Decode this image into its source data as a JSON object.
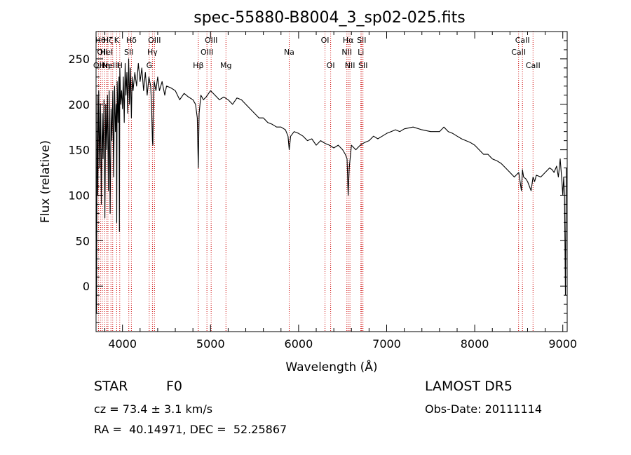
{
  "chart_data": {
    "type": "line",
    "title": "spec-55880-B8004_3_sp02-025.fits",
    "xlabel": "Wavelength (Å)",
    "ylabel": "Flux (relative)",
    "xlim": [
      3700,
      9050
    ],
    "ylim": [
      -50,
      280
    ],
    "xticks": [
      4000,
      5000,
      6000,
      7000,
      8000,
      9000
    ],
    "yticks": [
      0,
      50,
      100,
      150,
      200,
      250
    ],
    "grid": false,
    "series": [
      {
        "x": [
          3700,
          3705,
          3712,
          3720,
          3730,
          3740,
          3750,
          3760,
          3770,
          3780,
          3790,
          3800,
          3810,
          3820,
          3830,
          3840,
          3850,
          3860,
          3870,
          3880,
          3890,
          3900,
          3910,
          3920,
          3930,
          3935,
          3940,
          3950,
          3960,
          3965,
          3970,
          3980,
          3990,
          4000,
          4010,
          4020,
          4030,
          4040,
          4050,
          4060,
          4070,
          4080,
          4090,
          4101,
          4110,
          4120,
          4140,
          4160,
          4180,
          4200,
          4220,
          4240,
          4260,
          4280,
          4300,
          4320,
          4330,
          4340,
          4345,
          4350,
          4360,
          4380,
          4400,
          4420,
          4450,
          4480,
          4500,
          4550,
          4600,
          4650,
          4700,
          4750,
          4800,
          4830,
          4850,
          4861,
          4870,
          4890,
          4920,
          4950,
          5000,
          5050,
          5100,
          5150,
          5200,
          5250,
          5300,
          5350,
          5400,
          5450,
          5500,
          5550,
          5600,
          5650,
          5700,
          5750,
          5800,
          5850,
          5880,
          5893,
          5910,
          5950,
          6000,
          6050,
          6100,
          6150,
          6200,
          6250,
          6300,
          6350,
          6400,
          6450,
          6500,
          6530,
          6550,
          6563,
          6575,
          6600,
          6650,
          6700,
          6750,
          6800,
          6850,
          6900,
          6950,
          7000,
          7050,
          7100,
          7150,
          7200,
          7300,
          7400,
          7500,
          7600,
          7650,
          7700,
          7750,
          7800,
          7850,
          7900,
          7950,
          8000,
          8050,
          8100,
          8150,
          8200,
          8250,
          8300,
          8350,
          8400,
          8450,
          8500,
          8530,
          8542,
          8555,
          8580,
          8600,
          8640,
          8662,
          8680,
          8700,
          8750,
          8800,
          8850,
          8880,
          8900,
          8930,
          8950,
          8970,
          8990,
          9000,
          9010,
          9020,
          9030,
          9040
        ],
        "y": [
          60,
          -30,
          210,
          100,
          215,
          130,
          200,
          90,
          190,
          140,
          205,
          75,
          200,
          150,
          210,
          105,
          215,
          80,
          195,
          160,
          215,
          120,
          220,
          170,
          200,
          70,
          225,
          180,
          230,
          60,
          240,
          200,
          215,
          195,
          230,
          180,
          245,
          210,
          235,
          190,
          250,
          200,
          240,
          185,
          230,
          215,
          235,
          220,
          245,
          225,
          240,
          215,
          235,
          210,
          230,
          220,
          200,
          160,
          155,
          200,
          225,
          215,
          230,
          215,
          225,
          210,
          220,
          218,
          215,
          205,
          212,
          208,
          205,
          200,
          185,
          130,
          190,
          210,
          205,
          208,
          215,
          210,
          205,
          208,
          205,
          200,
          207,
          205,
          200,
          195,
          190,
          185,
          185,
          180,
          178,
          175,
          175,
          172,
          165,
          150,
          165,
          170,
          168,
          165,
          160,
          162,
          155,
          160,
          157,
          155,
          152,
          155,
          150,
          145,
          140,
          100,
          130,
          155,
          150,
          155,
          158,
          160,
          165,
          162,
          165,
          168,
          170,
          172,
          170,
          173,
          175,
          172,
          170,
          170,
          175,
          170,
          168,
          165,
          162,
          160,
          158,
          155,
          150,
          145,
          145,
          140,
          138,
          135,
          130,
          125,
          120,
          125,
          105,
          128,
          120,
          118,
          115,
          105,
          120,
          115,
          122,
          120,
          125,
          130,
          128,
          125,
          132,
          120,
          140,
          115,
          100,
          120,
          100,
          -10,
          130
        ]
      }
    ],
    "line_markers": [
      {
        "w": 3727,
        "label": "OII",
        "row": 3
      },
      {
        "w": 3750,
        "label": "Hθ",
        "row": 1
      },
      {
        "w": 3771,
        "label": "OII",
        "row": 2
      },
      {
        "w": 3798,
        "label": "Hη",
        "row": 3
      },
      {
        "w": 3820,
        "label": "HeI",
        "row": 2
      },
      {
        "w": 3835,
        "label": "Hζ",
        "row": 1
      },
      {
        "w": 3869,
        "label": "NeIII",
        "row": 3
      },
      {
        "w": 3889,
        "label": "",
        "row": 0
      },
      {
        "w": 3934,
        "label": "K",
        "row": 1
      },
      {
        "w": 3969,
        "label": "H",
        "row": 3
      },
      {
        "w": 4072,
        "label": "SII",
        "row": 2
      },
      {
        "w": 4101,
        "label": "Hδ",
        "row": 1
      },
      {
        "w": 4304,
        "label": "G",
        "row": 3
      },
      {
        "w": 4340,
        "label": "Hγ",
        "row": 2
      },
      {
        "w": 4363,
        "label": "OIII",
        "row": 1
      },
      {
        "w": 4861,
        "label": "Hβ",
        "row": 3
      },
      {
        "w": 4959,
        "label": "OIII",
        "row": 2
      },
      {
        "w": 5007,
        "label": "OIII",
        "row": 1
      },
      {
        "w": 5175,
        "label": "Mg",
        "row": 3
      },
      {
        "w": 5893,
        "label": "Na",
        "row": 2
      },
      {
        "w": 6300,
        "label": "OI",
        "row": 1
      },
      {
        "w": 6364,
        "label": "OI",
        "row": 3
      },
      {
        "w": 6548,
        "label": "NII",
        "row": 2
      },
      {
        "w": 6563,
        "label": "Hα",
        "row": 1
      },
      {
        "w": 6583,
        "label": "NII",
        "row": 3
      },
      {
        "w": 6707,
        "label": "Li",
        "row": 2
      },
      {
        "w": 6716,
        "label": "SII",
        "row": 1
      },
      {
        "w": 6731,
        "label": "SII",
        "row": 3
      },
      {
        "w": 8498,
        "label": "CaII",
        "row": 2
      },
      {
        "w": 8542,
        "label": "CaII",
        "row": 1
      },
      {
        "w": 8662,
        "label": "CaII",
        "row": 3
      }
    ],
    "line_color": "#000000",
    "marker_color": "#cc0000"
  },
  "info": {
    "class_label": "STAR",
    "subclass": "F0",
    "survey": "LAMOST DR5",
    "cz": "cz = 73.4 ± 3.1 km/s",
    "obs_date": "Obs-Date: 20111114",
    "radec": "RA =  40.14971, DEC =  52.25867"
  }
}
